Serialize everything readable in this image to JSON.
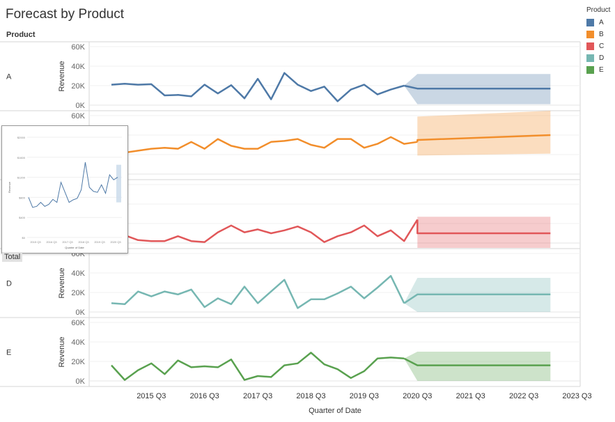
{
  "title": "Forecast by Product",
  "pane_header": "Product",
  "total_label": "Total",
  "legend": {
    "title": "Product",
    "items": [
      {
        "label": "A",
        "color": "#4e79a7"
      },
      {
        "label": "B",
        "color": "#f28e2b"
      },
      {
        "label": "C",
        "color": "#e15759"
      },
      {
        "label": "D",
        "color": "#76b7b2"
      },
      {
        "label": "E",
        "color": "#59a14f"
      }
    ]
  },
  "chart_data": {
    "type": "line",
    "title": "Forecast by Product",
    "xlabel": "Quarter of Date",
    "ylabel": "Revenue",
    "x_tick_labels": [
      "2015 Q3",
      "2016 Q3",
      "2017 Q3",
      "2018 Q3",
      "2019 Q3",
      "2020 Q3",
      "2021 Q3",
      "2022 Q3",
      "2023 Q3"
    ],
    "x_start_quarter": "2014 Q4",
    "ylim": [
      0,
      60000
    ],
    "y_tick_labels": [
      "0K",
      "20K",
      "40K",
      "60K"
    ],
    "forecast_start": "2020 Q3",
    "panels": [
      {
        "name": "A",
        "color": "#4e79a7",
        "show_axis": true,
        "actual": [
          21000,
          22000,
          21000,
          21500,
          10000,
          10500,
          9000,
          21000,
          12000,
          20500,
          7000,
          27000,
          6000,
          33000,
          21000,
          14500,
          19000,
          4000,
          16000,
          21000,
          11000,
          16000,
          20000
        ],
        "forecast": 17000,
        "band_low": 1000,
        "band_high": 32000
      },
      {
        "name": "B",
        "color": "#f28e2b",
        "show_axis": true,
        "actual": [
          21000,
          22000,
          24000,
          26000,
          27000,
          26000,
          33000,
          26000,
          36000,
          29000,
          26000,
          26000,
          33000,
          34000,
          36000,
          30000,
          27000,
          36000,
          36000,
          27000,
          31000,
          38000,
          31000,
          33000
        ],
        "forecast_start_value": 35000,
        "forecast_end_value": 40000,
        "band_low_start": 19000,
        "band_low_end": 21000,
        "band_high_start": 59000,
        "band_high_end": 65000
      },
      {
        "name": "C",
        "color": "#e15759",
        "show_axis": false,
        "actual": [
          6000,
          8000,
          3000,
          2000,
          2000,
          7000,
          2000,
          1000,
          11000,
          18000,
          11000,
          14000,
          10000,
          13000,
          17000,
          11000,
          1000,
          7000,
          11000,
          18000,
          7000,
          13000,
          2000,
          24000
        ],
        "forecast": 10000,
        "band_low": -5000,
        "band_high": 27000
      },
      {
        "name": "D",
        "color": "#76b7b2",
        "show_axis": true,
        "actual": [
          9000,
          8000,
          21000,
          16000,
          21000,
          18000,
          23000,
          5000,
          14000,
          8000,
          26000,
          9000,
          21000,
          33000,
          4000,
          13000,
          13000,
          19000,
          26000,
          14000,
          25000,
          37000,
          9000
        ],
        "forecast": 18000,
        "band_low": 0,
        "band_high": 35000
      },
      {
        "name": "E",
        "color": "#59a14f",
        "show_axis": true,
        "actual": [
          16000,
          1000,
          11000,
          18000,
          7000,
          21000,
          14000,
          15000,
          14000,
          22000,
          1000,
          5000,
          4000,
          16000,
          18000,
          29000,
          17000,
          12000,
          3000,
          10000,
          23000,
          24000,
          23000
        ],
        "forecast": 16000,
        "band_low": 0,
        "band_high": 30000
      }
    ]
  },
  "tooltip": {
    "y_tick_labels": [
      "$2000",
      "$1600",
      "$1200",
      "$800",
      "$400",
      "$0"
    ],
    "x_tick_labels": [
      "2015 Q3",
      "2016 Q3",
      "2017 Q3",
      "2018 Q3",
      "2019 Q3",
      "2020 Q3"
    ],
    "ylabel": "Revenue",
    "xlabel": "Quarter of Date",
    "color": "#4e79a7",
    "values": [
      800,
      600,
      620,
      700,
      620,
      660,
      760,
      700,
      1100,
      900,
      700,
      750,
      780,
      950,
      1500,
      1000,
      920,
      900,
      1050,
      880,
      1250,
      1150,
      1200
    ]
  }
}
